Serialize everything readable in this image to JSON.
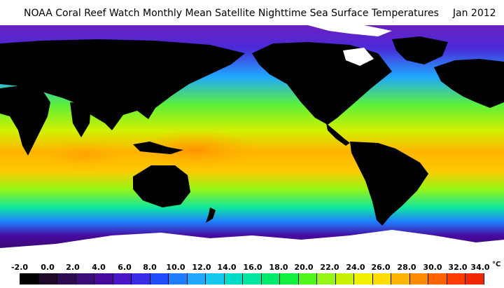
{
  "title": {
    "text": "NOAA Coral Reef Watch Monthly Mean Satellite Nighttime Sea Surface Temperatures",
    "date": "Jan 2012"
  },
  "map": {
    "variable": "Sea Surface Temperature",
    "land_color": "#000000",
    "ice_color": "#ffffff"
  },
  "colorbar": {
    "tick_labels": [
      "-2.0",
      "0.0",
      "2.0",
      "4.0",
      "6.0",
      "8.0",
      "10.0",
      "12.0",
      "14.0",
      "16.0",
      "18.0",
      "20.0",
      "22.0",
      "24.0",
      "26.0",
      "28.0",
      "30.0",
      "32.0",
      "34.0"
    ],
    "unit": "°C",
    "colors": [
      "#000000",
      "#1e0a28",
      "#2e0a52",
      "#3c0a7a",
      "#48099e",
      "#4b16c8",
      "#3a2ce6",
      "#1f4cff",
      "#1f7dff",
      "#1fa8ff",
      "#14c8f0",
      "#00dcc8",
      "#00e6a0",
      "#00eb6e",
      "#10f03c",
      "#50f51e",
      "#96f514",
      "#c8f000",
      "#f0f000",
      "#ffdc00",
      "#ffb400",
      "#ff8c00",
      "#ff6400",
      "#ff3c00",
      "#f02800"
    ]
  }
}
